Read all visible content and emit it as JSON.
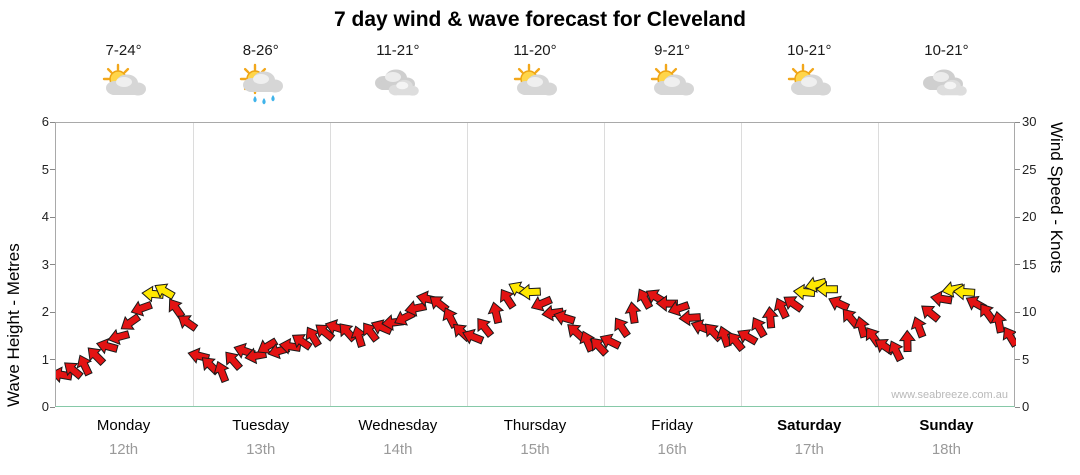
{
  "title": "7 day wind & wave forecast for Cleveland",
  "watermark": "www.seabreeze.com.au",
  "days": [
    {
      "name": "Monday",
      "date": "12th",
      "temp": "7-24°",
      "icon": "sun-cloud",
      "bold": false
    },
    {
      "name": "Tuesday",
      "date": "13th",
      "temp": "8-26°",
      "icon": "sun-cloud-rain",
      "bold": false
    },
    {
      "name": "Wednesday",
      "date": "14th",
      "temp": "11-21°",
      "icon": "clouds",
      "bold": false
    },
    {
      "name": "Thursday",
      "date": "15th",
      "temp": "11-20°",
      "icon": "sun-cloud",
      "bold": false
    },
    {
      "name": "Friday",
      "date": "16th",
      "temp": "9-21°",
      "icon": "sun-cloud",
      "bold": false
    },
    {
      "name": "Saturday",
      "date": "17th",
      "temp": "10-21°",
      "icon": "sun-cloud",
      "bold": true
    },
    {
      "name": "Sunday",
      "date": "18th",
      "temp": "10-21°",
      "icon": "clouds",
      "bold": true
    }
  ],
  "chart_data": {
    "type": "scatter",
    "title": "7 day wind & wave forecast for Cleveland",
    "left_axis": {
      "label": "Wave Height - Metres",
      "min": 0,
      "max": 6,
      "ticks": [
        0,
        1,
        2,
        3,
        4,
        5,
        6
      ]
    },
    "right_axis": {
      "label": "Wind Speed - Knots",
      "min": 0,
      "max": 30,
      "ticks": [
        0,
        5,
        10,
        15,
        20,
        25,
        30
      ]
    },
    "grid": "vertical-day-separators",
    "points_per_day": 12,
    "wind_knots": [
      3.5,
      4,
      4.5,
      5.5,
      6.5,
      7.5,
      9,
      10.5,
      12,
      12.3,
      10.5,
      9,
      5.5,
      4.5,
      3.8,
      5,
      6,
      5.5,
      6.5,
      6,
      6.5,
      7,
      7.5,
      8,
      8.5,
      8,
      7.5,
      8,
      8.5,
      9,
      9.5,
      10.5,
      11.5,
      11,
      9.5,
      8,
      7.5,
      8.5,
      10,
      11.5,
      12.5,
      12.2,
      11,
      10,
      9.5,
      8,
      7,
      6.5,
      7,
      8.5,
      10,
      11.5,
      11.7,
      11,
      10.5,
      9.5,
      8.5,
      8,
      7.5,
      7,
      7.5,
      8.5,
      9.5,
      10.5,
      11,
      12.2,
      13,
      12.5,
      11,
      9.5,
      8.5,
      7.5,
      6.5,
      6,
      7,
      8.5,
      10,
      11.5,
      12.5,
      12.2,
      11,
      10,
      9,
      7.5
    ],
    "wind_dir_deg": [
      190,
      220,
      245,
      225,
      195,
      165,
      145,
      160,
      185,
      210,
      235,
      215,
      194,
      224,
      249,
      229,
      199,
      169,
      149,
      164,
      189,
      214,
      239,
      219,
      198,
      228,
      253,
      233,
      203,
      173,
      153,
      168,
      193,
      218,
      243,
      223,
      202,
      232,
      257,
      237,
      207,
      177,
      157,
      172,
      197,
      222,
      247,
      227,
      206,
      236,
      261,
      241,
      211,
      181,
      161,
      176,
      201,
      226,
      251,
      231,
      210,
      240,
      265,
      245,
      215,
      185,
      165,
      180,
      205,
      230,
      255,
      235,
      214,
      244,
      269,
      249,
      219,
      189,
      169,
      184,
      209,
      234,
      259,
      239
    ],
    "arrow_colors": {
      "low": "#e31313",
      "high": "#ffe800"
    },
    "yellow_threshold_knots": 11.9
  }
}
